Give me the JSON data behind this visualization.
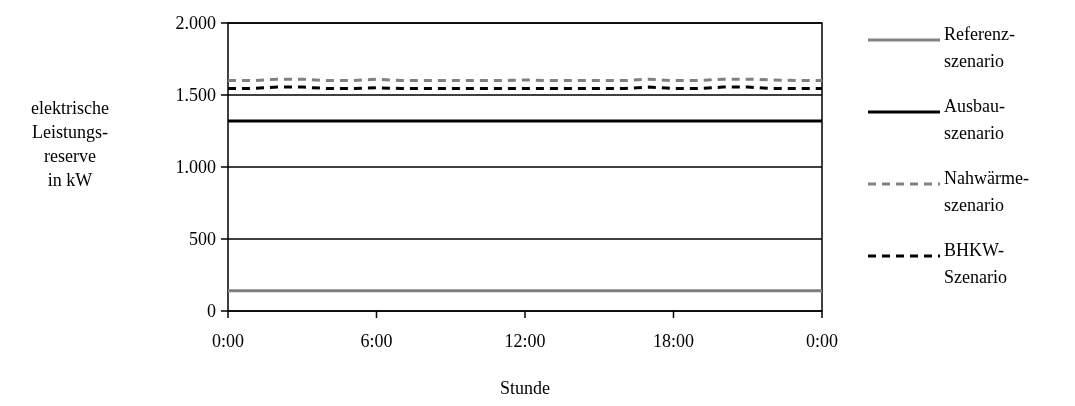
{
  "chart_data": {
    "type": "line",
    "xlabel": "Stunde",
    "ylabel": "elektrische\nLeistungs-\nreserve\nin kW",
    "x": [
      0,
      1,
      2,
      3,
      4,
      5,
      6,
      7,
      8,
      9,
      10,
      11,
      12,
      13,
      14,
      15,
      16,
      17,
      18,
      19,
      20,
      21,
      22,
      23,
      24
    ],
    "xlim": [
      0,
      24
    ],
    "xticks": [
      {
        "value": 0,
        "label": "0:00"
      },
      {
        "value": 6,
        "label": "6:00"
      },
      {
        "value": 12,
        "label": "12:00"
      },
      {
        "value": 18,
        "label": "18:00"
      },
      {
        "value": 24,
        "label": "0:00"
      }
    ],
    "ylim": [
      0,
      2000
    ],
    "yticks": [
      {
        "value": 0,
        "label": "0"
      },
      {
        "value": 500,
        "label": "500"
      },
      {
        "value": 1000,
        "label": "1.000"
      },
      {
        "value": 1500,
        "label": "1.500"
      },
      {
        "value": 2000,
        "label": "2.000"
      }
    ],
    "grid": "y",
    "legend": "right",
    "series": [
      {
        "name": "Referenz-\nszenario",
        "color": "#808080",
        "line_style": "solid",
        "values": [
          140,
          140,
          140,
          140,
          140,
          140,
          140,
          140,
          140,
          140,
          140,
          140,
          140,
          140,
          140,
          140,
          140,
          140,
          140,
          140,
          140,
          140,
          140,
          140,
          140
        ]
      },
      {
        "name": "Ausbau-\nszenario",
        "color": "#000000",
        "line_style": "solid",
        "values": [
          1320,
          1320,
          1320,
          1320,
          1320,
          1320,
          1320,
          1320,
          1320,
          1320,
          1320,
          1320,
          1320,
          1320,
          1320,
          1320,
          1320,
          1320,
          1320,
          1320,
          1320,
          1320,
          1320,
          1320,
          1320
        ]
      },
      {
        "name": "Nahwärme-\nszenario",
        "color": "#808080",
        "line_style": "dashed",
        "values": [
          1600,
          1600,
          1610,
          1610,
          1600,
          1600,
          1610,
          1600,
          1600,
          1600,
          1600,
          1600,
          1605,
          1600,
          1600,
          1600,
          1600,
          1610,
          1600,
          1600,
          1610,
          1610,
          1605,
          1600,
          1600
        ]
      },
      {
        "name": "BHKW-\nSzenario",
        "color": "#000000",
        "line_style": "dashed",
        "values": [
          1545,
          1545,
          1555,
          1555,
          1545,
          1545,
          1550,
          1545,
          1545,
          1545,
          1545,
          1545,
          1545,
          1545,
          1545,
          1545,
          1545,
          1555,
          1545,
          1545,
          1555,
          1555,
          1545,
          1545,
          1545
        ]
      }
    ]
  }
}
